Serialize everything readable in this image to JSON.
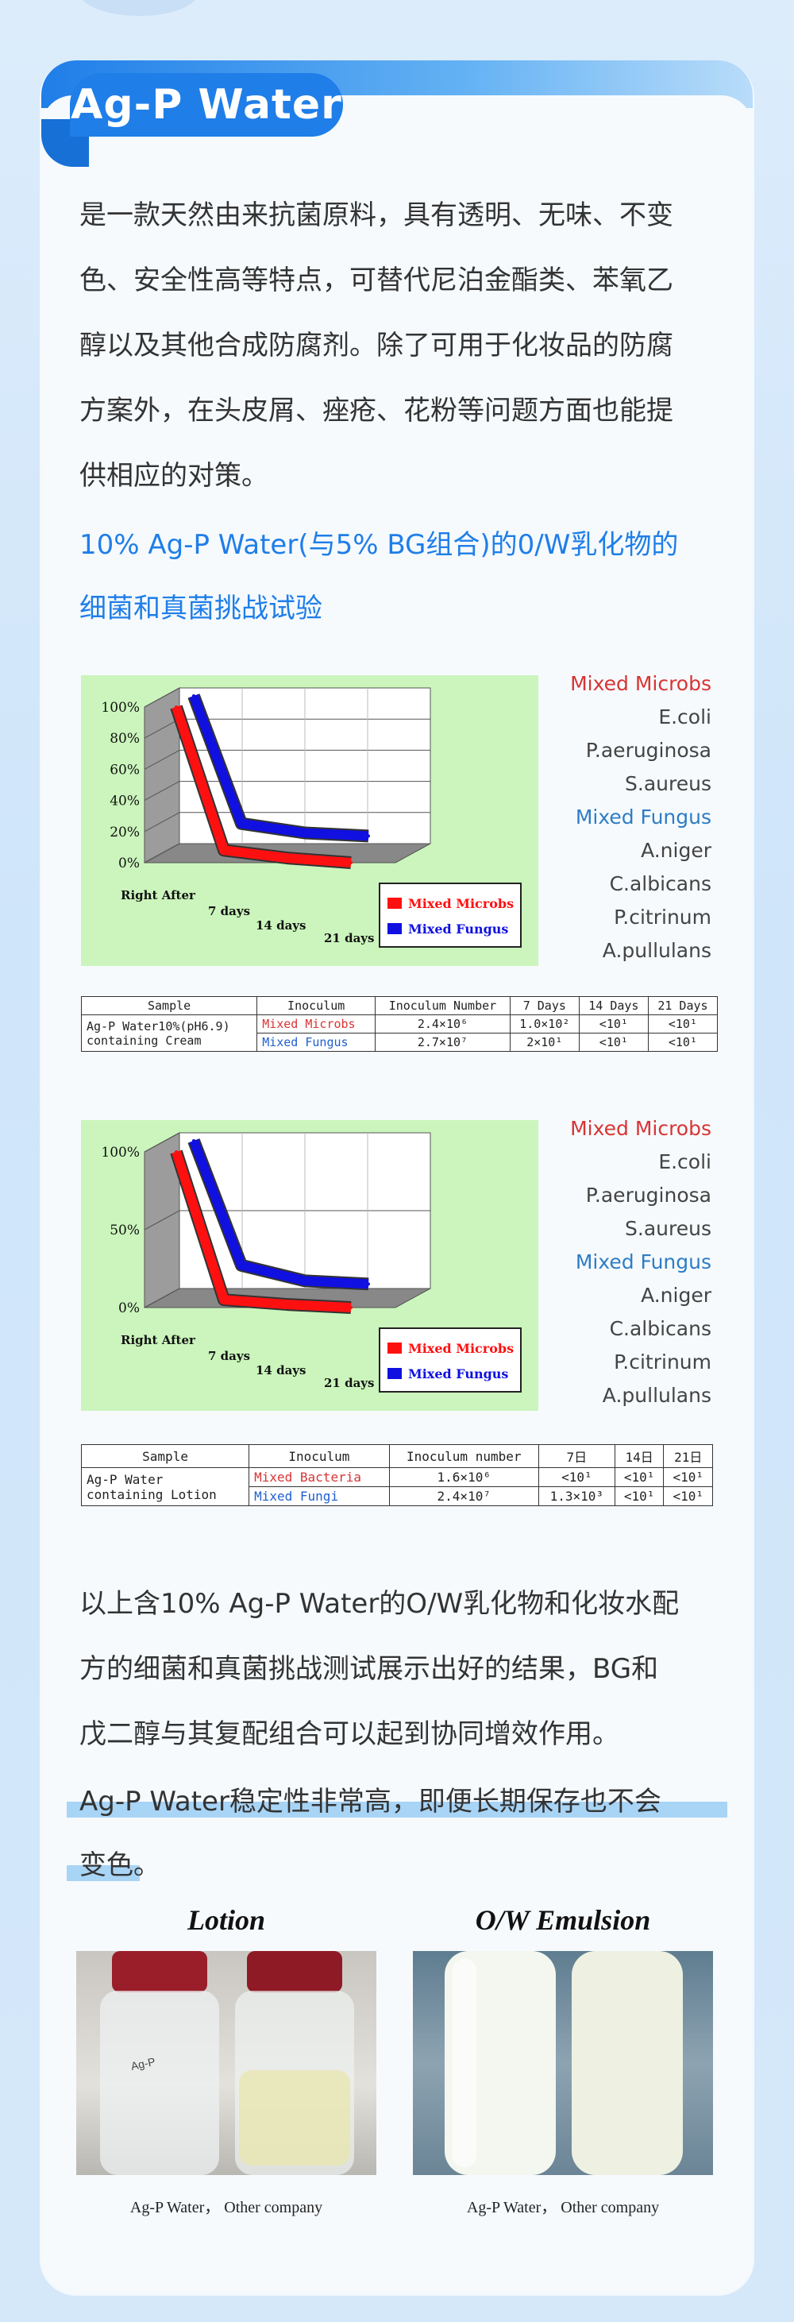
{
  "header": {
    "title": "Ag-P Water"
  },
  "intro": {
    "lines": [
      "是一款天然由来抗菌原料，具有透明、无味、不变",
      "色、安全性高等特点，可替代尼泊金酯类、苯氧乙",
      "醇以及其他合成防腐剂。除了可用于化妆品的防腐",
      "方案外，在头皮屑、痤疮、花粉等问题方面也能提",
      "供相应的对策。"
    ]
  },
  "test_heading": {
    "lines": [
      "10% Ag-P Water(与5% BG组合)的0/W乳化物的",
      "细菌和真菌挑战试验"
    ]
  },
  "organisms": {
    "mixed_microbs": "Mixed Microbs",
    "bacteria": [
      "E.coli",
      "P.aeruginosa",
      "S.aureus"
    ],
    "mixed_fungus": "Mixed Fungus",
    "fungi": [
      "A.niger",
      "C.albicans",
      "P.citrinum",
      "A.pullulans"
    ]
  },
  "chart_data": [
    {
      "type": "line",
      "title": "",
      "categories": [
        "Right After",
        "7 days",
        "14 days",
        "21 days"
      ],
      "y_ticks": [
        "100%",
        "80%",
        "60%",
        "40%",
        "20%",
        "0%"
      ],
      "ylim": [
        0,
        100
      ],
      "series": [
        {
          "name": "Mixed Microbs",
          "color": "#ff1010",
          "values": [
            100,
            8,
            3,
            0
          ]
        },
        {
          "name": "Mixed Fungus",
          "color": "#1010e0",
          "values": [
            100,
            18,
            12,
            10
          ]
        }
      ]
    },
    {
      "type": "line",
      "title": "",
      "categories": [
        "Right After",
        "7 days",
        "14 days",
        "21 days"
      ],
      "y_ticks": [
        "100%",
        "50%",
        "0%"
      ],
      "ylim": [
        0,
        100
      ],
      "series": [
        {
          "name": "Mixed Microbs",
          "color": "#ff1010",
          "values": [
            100,
            5,
            2,
            0
          ]
        },
        {
          "name": "Mixed Fungus",
          "color": "#1010e0",
          "values": [
            100,
            20,
            10,
            8
          ]
        }
      ]
    }
  ],
  "table1": {
    "headers": [
      "Sample",
      "Inoculum",
      "Inoculum Number",
      "7 Days",
      "14 Days",
      "21 Days"
    ],
    "sample": [
      "Ag-P Water10%(pH6.9)",
      "containing Cream"
    ],
    "rows": [
      {
        "inoculum": "Mixed Microbs",
        "number": "2.4×10⁶",
        "d7": "1.0×10²",
        "d14": "<10¹",
        "d21": "<10¹"
      },
      {
        "inoculum": "Mixed Fungus",
        "number": "2.7×10⁷",
        "d7": "2×10¹",
        "d14": "<10¹",
        "d21": "<10¹"
      }
    ]
  },
  "table2": {
    "headers": [
      "Sample",
      "Inoculum",
      "Inoculum number",
      "7日",
      "14日",
      "21日"
    ],
    "sample": [
      "Ag-P Water",
      "containing Lotion"
    ],
    "rows": [
      {
        "inoculum": "Mixed Bacteria",
        "number": "1.6×10⁶",
        "d7": "<10¹",
        "d14": "<10¹",
        "d21": "<10¹"
      },
      {
        "inoculum": "Mixed Fungi",
        "number": "2.4×10⁷",
        "d7": "1.3×10³",
        "d14": "<10¹",
        "d21": "<10¹"
      }
    ]
  },
  "conclusion": {
    "lines": [
      "以上含10% Ag-P Water的O/W乳化物和化妆水配",
      "方的细菌和真菌挑战测试展示出好的结果，BG和",
      "戊二醇与其复配组合可以起到协同增效作用。"
    ]
  },
  "stability": {
    "lines": [
      "Ag-P Water稳定性非常高，即便长期保存也不会",
      "变色。"
    ]
  },
  "photos": [
    {
      "title": "Lotion",
      "caption": "Ag-P Water， Other company",
      "label": "Ag-P"
    },
    {
      "title": "O/W Emulsion",
      "caption": "Ag-P Water， Other company"
    }
  ],
  "colors": {
    "accent": "#1f7ee8",
    "red": "#d93434",
    "blue": "#2e7dc4"
  }
}
